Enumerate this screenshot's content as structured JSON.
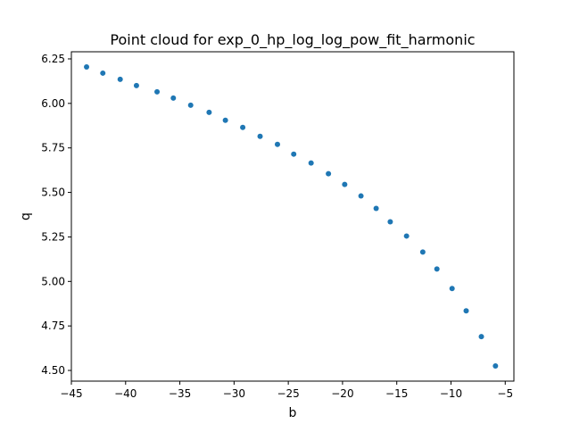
{
  "chart_data": {
    "type": "scatter",
    "title": "Point cloud for exp_0_hp_log_log_pow_fit_harmonic",
    "xlabel": "b",
    "ylabel": "q",
    "xlim": [
      -45.0,
      -4.2
    ],
    "ylim": [
      4.44,
      6.29
    ],
    "xticks": [
      -45,
      -40,
      -35,
      -30,
      -25,
      -20,
      -15,
      -10,
      -5
    ],
    "xtick_labels": [
      "−45",
      "−40",
      "−35",
      "−30",
      "−25",
      "−20",
      "−15",
      "−10",
      "−5"
    ],
    "yticks": [
      4.5,
      4.75,
      5.0,
      5.25,
      5.5,
      5.75,
      6.0,
      6.25
    ],
    "ytick_labels": [
      "4.50",
      "4.75",
      "5.00",
      "5.25",
      "5.50",
      "5.75",
      "6.00",
      "6.25"
    ],
    "grid": false,
    "legend": false,
    "marker_color": "#1f77b4",
    "series": [
      {
        "x": [
          -43.6,
          -42.1,
          -40.5,
          -39.0,
          -37.1,
          -35.6,
          -34.0,
          -32.3,
          -30.8,
          -29.2,
          -27.6,
          -26.0,
          -24.5,
          -22.9,
          -21.3,
          -19.8,
          -18.3,
          -16.9,
          -15.6,
          -14.1,
          -12.6,
          -11.3,
          -9.9,
          -8.6,
          -7.2,
          -5.9
        ],
        "y": [
          6.205,
          6.17,
          6.135,
          6.1,
          6.065,
          6.03,
          5.99,
          5.95,
          5.905,
          5.865,
          5.815,
          5.77,
          5.715,
          5.665,
          5.605,
          5.545,
          5.48,
          5.41,
          5.335,
          5.255,
          5.165,
          5.07,
          4.96,
          4.835,
          4.69,
          4.525
        ]
      }
    ]
  }
}
